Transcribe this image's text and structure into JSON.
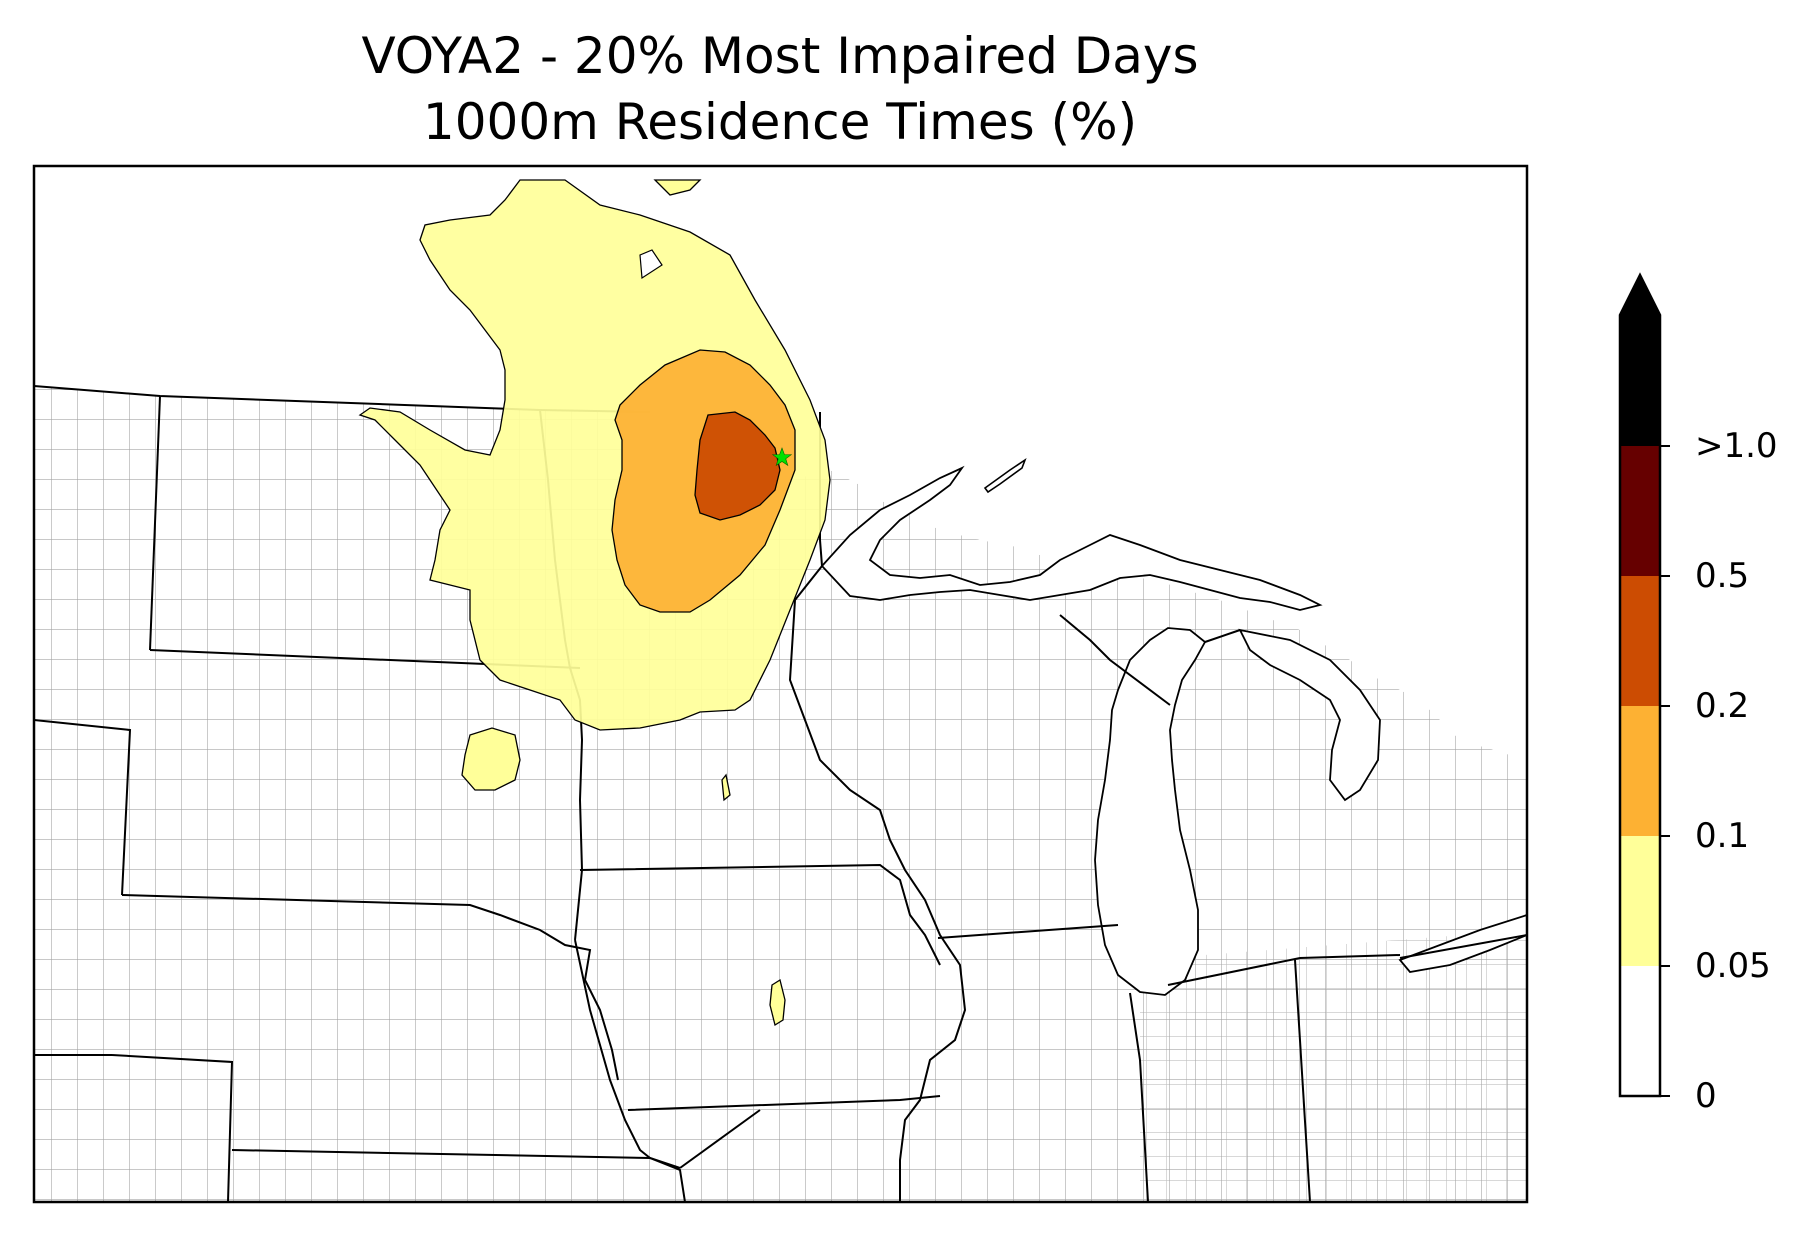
{
  "title": {
    "line1": "VOYA2 - 20% Most Impaired Days",
    "line2": "1000m Residence Times (%)"
  },
  "colorbar": {
    "levels": [
      {
        "label": "0",
        "color": "#ffffff"
      },
      {
        "label": "0.05",
        "color": "#ffff99"
      },
      {
        "label": "0.1",
        "color": "#fdb133"
      },
      {
        "label": "0.2",
        "color": "#cc4c02"
      },
      {
        "label": "0.5",
        "color": "#660000"
      },
      {
        "label": ">1.0",
        "color": "#000000"
      }
    ]
  },
  "colors": {
    "state_border": "#000000",
    "county_border": "#a6a6a6",
    "receptor_marker": "#00e000"
  },
  "icons": {
    "receptor": "receptor-star-icon",
    "extend": "colorbar-extend-arrow-icon"
  }
}
